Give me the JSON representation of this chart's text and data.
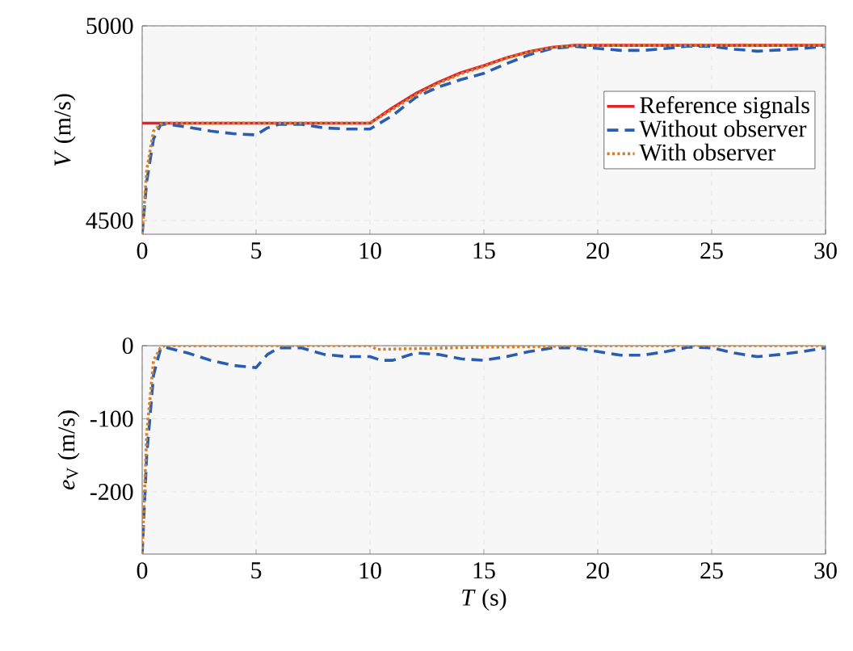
{
  "chart_data": [
    {
      "type": "line",
      "ylabel": "*V* (m/s)",
      "xlim": [
        0,
        30
      ],
      "ylim": [
        4465,
        5000
      ],
      "xticks": [
        0,
        5,
        10,
        15,
        20,
        25,
        30
      ],
      "yticks": [
        4500,
        5000
      ],
      "grid": true,
      "legend": "right",
      "series": [
        {
          "name": "Reference signals",
          "color": "#e0242a",
          "line_style": "solid",
          "x": [
            0,
            10,
            11,
            12,
            13,
            14,
            15,
            16,
            17,
            18,
            19,
            30
          ],
          "values": [
            4750,
            4750,
            4790,
            4826,
            4855,
            4880,
            4898,
            4918,
            4934,
            4945,
            4950,
            4950
          ]
        },
        {
          "name": "Without observer",
          "color": "#2a5db0",
          "line_style": "dashed",
          "x": [
            0,
            0.2,
            0.5,
            0.8,
            1,
            2,
            3,
            4,
            5,
            5.5,
            6,
            7,
            8,
            9,
            10,
            11,
            12,
            13,
            14,
            15,
            16,
            17,
            18,
            19,
            20,
            21,
            22,
            23,
            24,
            25,
            26,
            27,
            28,
            29,
            30
          ],
          "values": [
            4465,
            4600,
            4710,
            4745,
            4748,
            4740,
            4730,
            4723,
            4720,
            4738,
            4747,
            4747,
            4738,
            4735,
            4735,
            4770,
            4816,
            4843,
            4862,
            4878,
            4903,
            4926,
            4942,
            4947,
            4942,
            4937,
            4937,
            4942,
            4948,
            4947,
            4940,
            4935,
            4938,
            4942,
            4947
          ]
        },
        {
          "name": "With observer",
          "color": "#d4802a",
          "line_style": "dotted",
          "x": [
            0,
            0.2,
            0.5,
            0.8,
            1,
            10,
            11,
            12,
            13,
            14,
            15,
            16,
            17,
            18,
            19,
            30
          ],
          "values": [
            4465,
            4630,
            4730,
            4747,
            4750,
            4750,
            4786,
            4822,
            4852,
            4877,
            4896,
            4917,
            4933,
            4944,
            4950,
            4950
          ]
        }
      ]
    },
    {
      "type": "line",
      "xlabel": "*T* (s)",
      "ylabel": "*e*$_{V}$ (m/s)",
      "xlim": [
        0,
        30
      ],
      "ylim": [
        -285,
        0
      ],
      "xticks": [
        0,
        5,
        10,
        15,
        20,
        25,
        30
      ],
      "yticks": [
        -200,
        -100,
        0
      ],
      "grid": true,
      "series": [
        {
          "color": "#2a5db0",
          "line_style": "dashed",
          "x": [
            0,
            0.2,
            0.5,
            0.8,
            1,
            2,
            3,
            4,
            5,
            5.5,
            6,
            7,
            8,
            9,
            10,
            10.5,
            11,
            12,
            13,
            14,
            15,
            16,
            17,
            18,
            19,
            20,
            21,
            22,
            23,
            24,
            25,
            26,
            27,
            28,
            29,
            30
          ],
          "values": [
            -285,
            -150,
            -40,
            -5,
            -2,
            -10,
            -20,
            -27,
            -30,
            -12,
            -3,
            -3,
            -12,
            -15,
            -15,
            -20,
            -20,
            -10,
            -12,
            -18,
            -20,
            -15,
            -8,
            -3,
            -3,
            -8,
            -13,
            -13,
            -8,
            -2,
            -3,
            -10,
            -15,
            -12,
            -8,
            -3
          ]
        },
        {
          "color": "#d4802a",
          "line_style": "dotted",
          "x": [
            0,
            0.2,
            0.5,
            0.8,
            1,
            10,
            10.3,
            12,
            15,
            18,
            19,
            30
          ],
          "values": [
            -285,
            -120,
            -20,
            -3,
            0,
            0,
            -5,
            -4,
            -2,
            -1,
            0,
            0
          ]
        }
      ]
    }
  ]
}
